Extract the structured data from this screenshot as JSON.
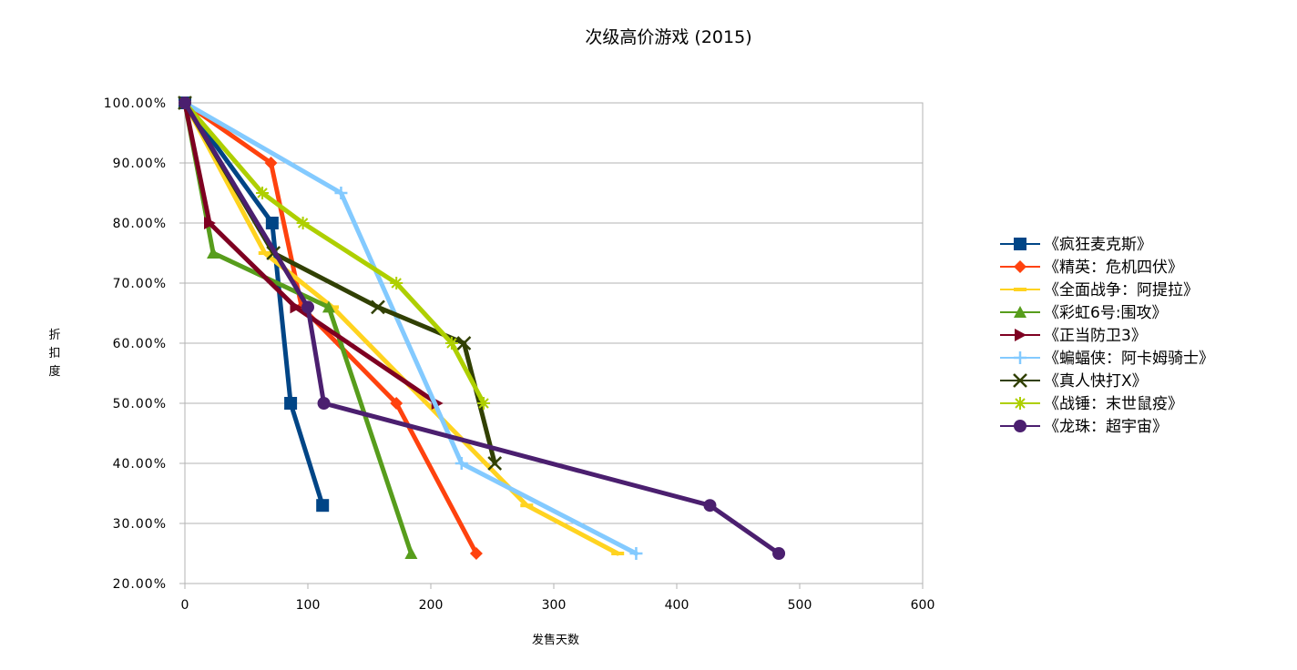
{
  "chart_data": {
    "type": "line",
    "title": "次级高价游戏 (2015)",
    "xlabel": "发售天数",
    "ylabel": "折扣度",
    "xlim": [
      0,
      600
    ],
    "ylim": [
      0.2,
      1.0
    ],
    "x_ticks": [
      0,
      100,
      200,
      300,
      400,
      500,
      600
    ],
    "x_tick_labels": [
      "0",
      "100",
      "200",
      "300",
      "400",
      "500",
      "600"
    ],
    "y_ticks": [
      0.2,
      0.3,
      0.4,
      0.5,
      0.6,
      0.7,
      0.8,
      0.9,
      1.0
    ],
    "y_tick_labels": [
      "20.00%",
      "30.00%",
      "40.00%",
      "50.00%",
      "60.00%",
      "70.00%",
      "80.00%",
      "90.00%",
      "100.00%"
    ],
    "grid": "horizontal",
    "legend_position": "right",
    "series": [
      {
        "name": "《疯狂麦克斯》",
        "color": "#004586",
        "marker": "square",
        "x": [
          0,
          71,
          86,
          112
        ],
        "y": [
          1.0,
          0.8,
          0.5,
          0.33
        ]
      },
      {
        "name": "《精英：危机四伏》",
        "color": "#ff420e",
        "marker": "diamond",
        "x": [
          0,
          70,
          95,
          172,
          237
        ],
        "y": [
          1.0,
          0.9,
          0.66,
          0.5,
          0.25
        ]
      },
      {
        "name": "《全面战争：阿提拉》",
        "color": "#ffd320",
        "marker": "bar",
        "x": [
          0,
          65,
          120,
          278,
          352
        ],
        "y": [
          1.0,
          0.75,
          0.66,
          0.33,
          0.25
        ]
      },
      {
        "name": "《彩虹6号:围攻》",
        "color": "#579d1c",
        "marker": "triangle-up",
        "x": [
          0,
          23,
          117,
          184
        ],
        "y": [
          1.0,
          0.75,
          0.66,
          0.25
        ]
      },
      {
        "name": "《正当防卫3》",
        "color": "#7e0021",
        "marker": "triangle-right",
        "x": [
          0,
          20,
          90,
          205
        ],
        "y": [
          1.0,
          0.8,
          0.66,
          0.5
        ]
      },
      {
        "name": "《蝙蝠侠：阿卡姆骑士》",
        "color": "#83caff",
        "marker": "plus",
        "x": [
          0,
          127,
          225,
          367
        ],
        "y": [
          1.0,
          0.85,
          0.4,
          0.25
        ]
      },
      {
        "name": "《真人快打X》",
        "color": "#314004",
        "marker": "x",
        "x": [
          0,
          72,
          157,
          227,
          252
        ],
        "y": [
          1.0,
          0.75,
          0.66,
          0.6,
          0.4
        ]
      },
      {
        "name": "《战锤：末世鼠疫》",
        "color": "#aecf00",
        "marker": "star",
        "x": [
          0,
          63,
          96,
          172,
          217,
          243
        ],
        "y": [
          1.0,
          0.85,
          0.8,
          0.7,
          0.6,
          0.5
        ]
      },
      {
        "name": "《龙珠：超宇宙》",
        "color": "#4b1f6f",
        "marker": "circle",
        "x": [
          0,
          100,
          113,
          427,
          483
        ],
        "y": [
          1.0,
          0.66,
          0.5,
          0.33,
          0.25
        ]
      }
    ]
  }
}
